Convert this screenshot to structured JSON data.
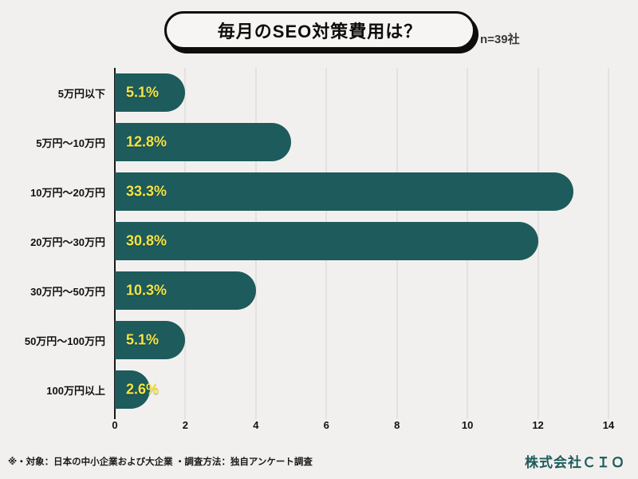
{
  "header": {
    "title": "毎月のSEO対策費用は？",
    "sample_label": "n=39社"
  },
  "chart_data": {
    "type": "bar",
    "orientation": "horizontal",
    "title": "毎月のSEO対策費用は？",
    "categories": [
      "5万円以下",
      "5万円～10万円",
      "10万円～20万円",
      "20万円～30万円",
      "30万円～50万円",
      "50万円～100万円",
      "100万円以上"
    ],
    "values": [
      2,
      5,
      13,
      12,
      4,
      2,
      1
    ],
    "percent_labels": [
      "5.1%",
      "12.8%",
      "33.3%",
      "30.8%",
      "10.3%",
      "5.1%",
      "2.6%"
    ],
    "x_ticks": [
      0,
      2,
      4,
      6,
      8,
      10,
      12,
      14
    ],
    "xlim": [
      0,
      14
    ],
    "grid": true,
    "legend": "none",
    "bar_color": "#1d5b5c",
    "label_color": "#f7e544"
  },
  "footer": {
    "note": "※・対象：日本の中小企業および大企業 ・調査方法：独自アンケート調査",
    "company": "株式会社ＣＩＯ"
  }
}
